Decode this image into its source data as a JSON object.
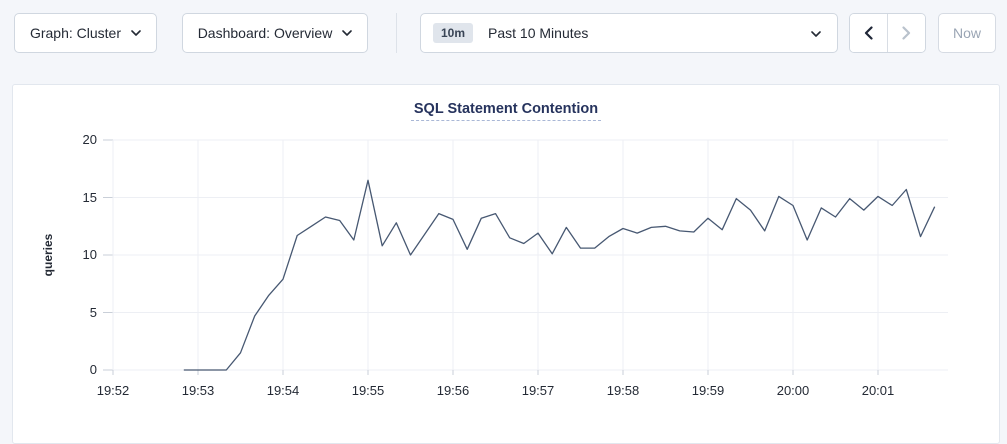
{
  "toolbar": {
    "graph_dropdown": {
      "label": "Graph: Cluster"
    },
    "dashboard_dropdown": {
      "label": "Dashboard: Overview"
    },
    "time_selector": {
      "badge": "10m",
      "label": "Past 10 Minutes"
    },
    "now_button": "Now"
  },
  "icons": {
    "dropdown_chevron": "chevron-down",
    "prev": "chevron-left",
    "next": "chevron-right"
  },
  "colors": {
    "line": "#475872",
    "title": "#26335d",
    "text": "#242a35",
    "disabled_text": "#9aa5b4",
    "gridline": "#edeff4",
    "tick": "#c9cfd8",
    "card_border": "#e2e7ee",
    "page_bg": "#f4f6fa"
  },
  "chart_data": {
    "type": "line",
    "title": "SQL Statement Contention",
    "xlabel": "",
    "ylabel": "queries",
    "ylim": [
      0,
      20
    ],
    "y_ticks": [
      0,
      5,
      10,
      15,
      20
    ],
    "x_ticks": [
      "19:52",
      "19:53",
      "19:54",
      "19:55",
      "19:56",
      "19:57",
      "19:58",
      "19:59",
      "20:00",
      "20:01"
    ],
    "grid": true,
    "legend": "none",
    "series": [
      {
        "name": "queries",
        "x": [
          "19:52:50",
          "19:53:00",
          "19:53:10",
          "19:53:20",
          "19:53:30",
          "19:53:40",
          "19:53:50",
          "19:54:00",
          "19:54:10",
          "19:54:20",
          "19:54:30",
          "19:54:40",
          "19:54:50",
          "19:55:00",
          "19:55:10",
          "19:55:20",
          "19:55:30",
          "19:55:40",
          "19:55:50",
          "19:56:00",
          "19:56:10",
          "19:56:20",
          "19:56:30",
          "19:56:40",
          "19:56:50",
          "19:57:00",
          "19:57:10",
          "19:57:20",
          "19:57:30",
          "19:57:40",
          "19:57:50",
          "19:58:00",
          "19:58:10",
          "19:58:20",
          "19:58:30",
          "19:58:40",
          "19:58:50",
          "19:59:00",
          "19:59:10",
          "19:59:20",
          "19:59:30",
          "19:59:40",
          "19:59:50",
          "20:00:00",
          "20:00:10",
          "20:00:20",
          "20:00:30",
          "20:00:40",
          "20:00:50",
          "20:01:00",
          "20:01:10",
          "20:01:20",
          "20:01:30",
          "20:01:40"
        ],
        "values": [
          0,
          0,
          0,
          0,
          1.5,
          4.7,
          6.5,
          7.9,
          11.7,
          12.5,
          13.3,
          13.0,
          11.3,
          16.5,
          10.8,
          12.8,
          10.0,
          11.8,
          13.6,
          13.1,
          10.5,
          13.2,
          13.6,
          11.5,
          11.0,
          11.9,
          10.1,
          12.4,
          10.6,
          10.6,
          11.6,
          12.3,
          11.9,
          12.4,
          12.5,
          12.1,
          12.0,
          13.2,
          12.2,
          14.9,
          13.9,
          12.1,
          15.1,
          14.3,
          11.3,
          14.1,
          13.3,
          14.9,
          13.9,
          15.1,
          14.3,
          15.7,
          11.6,
          14.2
        ]
      }
    ]
  }
}
